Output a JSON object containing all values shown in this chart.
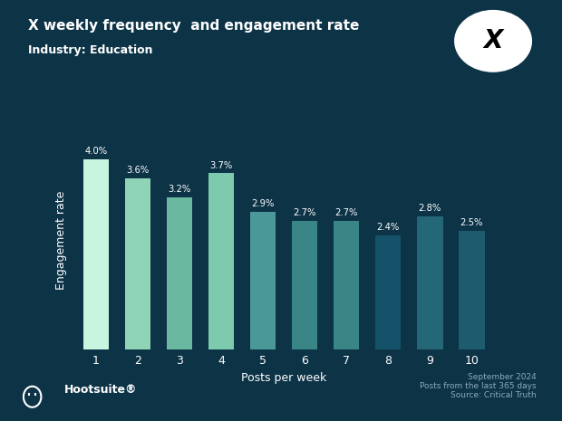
{
  "title_line1": "X weekly frequency  and engagement rate",
  "title_line2": "Industry: Education",
  "xlabel": "Posts per week",
  "ylabel": "Engagement rate",
  "categories": [
    1,
    2,
    3,
    4,
    5,
    6,
    7,
    8,
    9,
    10
  ],
  "values": [
    4.0,
    3.6,
    3.2,
    3.7,
    2.9,
    2.7,
    2.7,
    2.4,
    2.8,
    2.5
  ],
  "bar_colors": [
    "#c8f5e0",
    "#90d4b8",
    "#6ab8a0",
    "#7dcaae",
    "#4a9898",
    "#3a8585",
    "#3a8585",
    "#14526a",
    "#246878",
    "#1c5c6e"
  ],
  "background_color": "#0d3347",
  "text_color": "#ffffff",
  "footer_color": "#8aaabb",
  "footer_text": "September 2024\nPosts from the last 365 days\nSource: Critical Truth",
  "hootsuite_text": "Hootsuite",
  "ylim": [
    0,
    4.6
  ]
}
